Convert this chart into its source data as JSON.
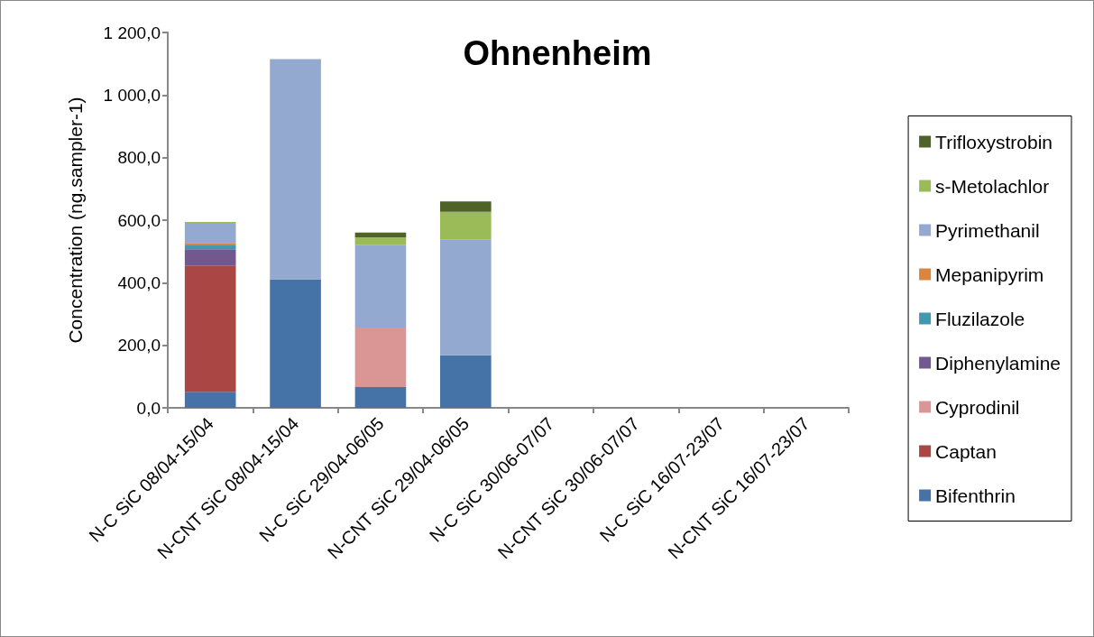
{
  "chart_data": {
    "type": "bar",
    "title": "Ohnenheim",
    "ylabel": "Concentration (ng.sampler-1)",
    "stacked": true,
    "legend": "right",
    "grid": false,
    "categories": [
      "N-C SiC 08/04-15/04",
      "N-CNT SiC 08/04-15/04",
      "N-C SiC 29/04-06/05",
      "N-CNT SiC 29/04-06/05",
      "N-C SiC 30/06-07/07",
      "N-CNT SiC 30/06-07/07",
      "N-C SiC 16/07-23/07",
      "N-CNT SiC 16/07-23/07"
    ],
    "ylim": [
      0,
      1200
    ],
    "yticks": [
      {
        "value": 0,
        "label": "0,0"
      },
      {
        "value": 200,
        "label": "200,0"
      },
      {
        "value": 400,
        "label": "400,0"
      },
      {
        "value": 600,
        "label": "600,0"
      },
      {
        "value": 800,
        "label": "800,0"
      },
      {
        "value": 1000,
        "label": "1 000,0"
      },
      {
        "value": 1200,
        "label": "1 200,0"
      }
    ],
    "series": [
      {
        "name": "Bifenthrin",
        "color": "#4572a7",
        "values": [
          51,
          411,
          66,
          168,
          null,
          null,
          null,
          null
        ]
      },
      {
        "name": "Captan",
        "color": "#aa4643",
        "values": [
          404,
          null,
          null,
          null,
          null,
          null,
          null,
          null
        ]
      },
      {
        "name": "Cyprodinil",
        "color": "#d99694",
        "values": [
          null,
          null,
          191,
          null,
          null,
          null,
          null,
          null
        ]
      },
      {
        "name": "Diphenylamine",
        "color": "#71588f",
        "values": [
          52,
          null,
          null,
          null,
          null,
          null,
          null,
          null
        ]
      },
      {
        "name": "Fluzilazole",
        "color": "#4198af",
        "values": [
          12,
          null,
          null,
          null,
          null,
          null,
          null,
          null
        ]
      },
      {
        "name": "Mepanipyrim",
        "color": "#db843d",
        "values": [
          8,
          null,
          null,
          null,
          null,
          null,
          null,
          null
        ]
      },
      {
        "name": "Pyrimethanil",
        "color": "#93a9cf",
        "values": [
          64,
          704,
          263,
          371,
          null,
          null,
          null,
          null
        ]
      },
      {
        "name": "s-Metolachlor",
        "color": "#9bbb59",
        "values": [
          3,
          null,
          25,
          88,
          null,
          null,
          null,
          null
        ]
      },
      {
        "name": "Trifloxystrobin",
        "color": "#4f6228",
        "values": [
          null,
          null,
          15,
          33,
          null,
          null,
          null,
          null
        ]
      }
    ]
  }
}
